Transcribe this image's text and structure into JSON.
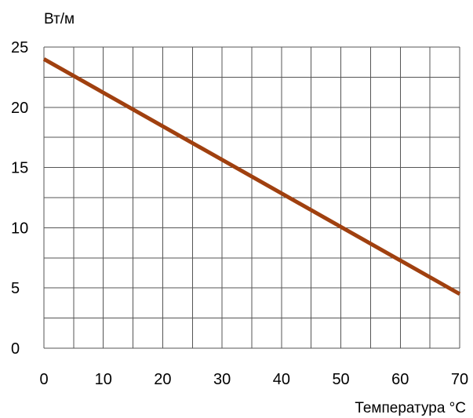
{
  "chart_data": {
    "type": "line",
    "title": "",
    "xlabel": "Температура °C",
    "ylabel": "Вт/м",
    "xlim": [
      0,
      70
    ],
    "ylim": [
      0,
      25
    ],
    "x_ticks": [
      0,
      10,
      20,
      30,
      40,
      50,
      60,
      70
    ],
    "y_ticks": [
      0,
      5,
      10,
      15,
      20,
      25
    ],
    "x_tick_labels": [
      "0",
      "10",
      "20",
      "30",
      "40",
      "50",
      "60",
      "70"
    ],
    "y_tick_labels": [
      "0",
      "5",
      "10",
      "15",
      "20",
      "25"
    ],
    "x_grid_step": 5,
    "y_grid_step": 2.5,
    "grid": true,
    "legend": "none",
    "series": [
      {
        "color": "#a0400f",
        "x": [
          0,
          70
        ],
        "y": [
          24,
          4.5
        ]
      }
    ]
  }
}
